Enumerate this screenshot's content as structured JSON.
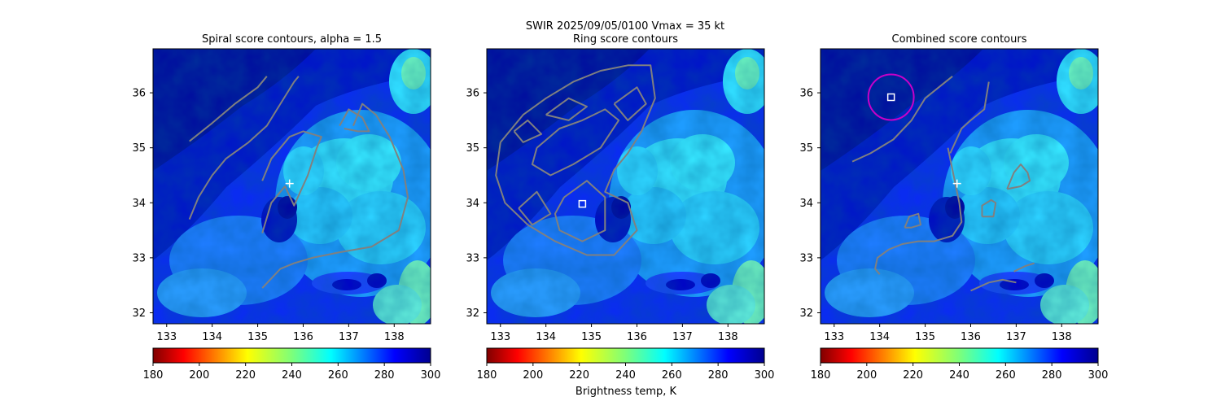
{
  "figure": {
    "suptitle_line1": "SWIR  2025/09/05/0100    Vmax = 35 kt",
    "colorbar_label": "Brightness temp, K"
  },
  "colors": {
    "contour": "#808080",
    "marker": "#ffffff",
    "circle": "#c800c8"
  },
  "chart_data": [
    {
      "type": "heatmap",
      "title": "Spiral score contours, alpha =  1.5",
      "x_ticks": [
        133,
        134,
        135,
        136,
        137,
        138
      ],
      "y_ticks": [
        32,
        33,
        34,
        35,
        36
      ],
      "xlim": [
        132.7,
        138.8
      ],
      "ylim": [
        31.8,
        36.8
      ],
      "colorbar": {
        "ticks": [
          180,
          200,
          220,
          240,
          260,
          280,
          300
        ],
        "colormap": "jet_r",
        "range": [
          180,
          300
        ]
      },
      "markers": [
        {
          "type": "plus",
          "lon": 135.7,
          "lat": 34.35
        }
      ],
      "contours": [
        [
          [
            133.5,
            35.12
          ],
          [
            134.0,
            35.45
          ],
          [
            134.5,
            35.8
          ],
          [
            135.0,
            36.1
          ],
          [
            135.2,
            36.3
          ]
        ],
        [
          [
            133.5,
            33.7
          ],
          [
            133.7,
            34.1
          ],
          [
            134.0,
            34.5
          ],
          [
            134.3,
            34.8
          ],
          [
            134.8,
            35.1
          ],
          [
            135.2,
            35.4
          ],
          [
            135.5,
            35.8
          ],
          [
            135.8,
            36.2
          ],
          [
            135.9,
            36.3
          ]
        ],
        [
          [
            135.1,
            33.45
          ],
          [
            135.3,
            34.0
          ],
          [
            135.6,
            34.3
          ],
          [
            135.8,
            33.95
          ],
          [
            136.1,
            34.5
          ],
          [
            136.3,
            35.0
          ],
          [
            136.4,
            35.2
          ],
          [
            136.0,
            35.3
          ],
          [
            135.7,
            35.2
          ],
          [
            135.3,
            34.8
          ],
          [
            135.1,
            34.4
          ]
        ],
        [
          [
            137.1,
            35.4
          ],
          [
            137.3,
            35.8
          ],
          [
            137.6,
            35.6
          ],
          [
            137.9,
            35.2
          ],
          [
            138.2,
            34.6
          ],
          [
            138.3,
            34.1
          ],
          [
            138.1,
            33.5
          ],
          [
            137.5,
            33.2
          ],
          [
            136.8,
            33.1
          ],
          [
            136.2,
            33.0
          ],
          [
            135.8,
            32.9
          ],
          [
            135.5,
            32.8
          ],
          [
            135.1,
            32.45
          ]
        ],
        [
          [
            136.8,
            35.4
          ],
          [
            137.0,
            35.7
          ],
          [
            137.3,
            35.55
          ],
          [
            137.45,
            35.3
          ],
          [
            137.2,
            35.3
          ],
          [
            136.9,
            35.35
          ]
        ]
      ]
    },
    {
      "type": "heatmap",
      "title": "Ring score contours",
      "x_ticks": [
        133,
        134,
        135,
        136,
        137,
        138
      ],
      "y_ticks": [
        32,
        33,
        34,
        35,
        36
      ],
      "xlim": [
        132.7,
        138.8
      ],
      "ylim": [
        31.8,
        36.8
      ],
      "colorbar": {
        "ticks": [
          180,
          200,
          220,
          240,
          260,
          280,
          300
        ],
        "colormap": "jet_r",
        "range": [
          180,
          300
        ]
      },
      "markers": [
        {
          "type": "square",
          "lon": 134.8,
          "lat": 33.98
        }
      ],
      "contours": [
        [
          [
            133.0,
            35.1
          ],
          [
            133.5,
            35.6
          ],
          [
            134.0,
            35.9
          ],
          [
            134.6,
            36.2
          ],
          [
            135.2,
            36.4
          ],
          [
            135.8,
            36.5
          ],
          [
            136.3,
            36.5
          ],
          [
            136.4,
            35.9
          ],
          [
            136.1,
            35.3
          ],
          [
            135.8,
            34.9
          ],
          [
            135.5,
            34.6
          ],
          [
            135.3,
            34.2
          ],
          [
            135.8,
            34.0
          ],
          [
            136.0,
            33.5
          ],
          [
            135.5,
            33.05
          ],
          [
            134.9,
            33.05
          ],
          [
            134.2,
            33.3
          ],
          [
            133.6,
            33.6
          ],
          [
            133.1,
            34.0
          ],
          [
            132.9,
            34.5
          ],
          [
            133.0,
            35.1
          ]
        ],
        [
          [
            133.8,
            35.0
          ],
          [
            134.3,
            35.35
          ],
          [
            134.8,
            35.5
          ],
          [
            135.3,
            35.7
          ],
          [
            135.6,
            35.5
          ],
          [
            135.2,
            35.0
          ],
          [
            134.6,
            34.7
          ],
          [
            134.1,
            34.5
          ],
          [
            133.7,
            34.7
          ],
          [
            133.8,
            35.0
          ]
        ],
        [
          [
            134.4,
            34.1
          ],
          [
            134.9,
            34.4
          ],
          [
            135.3,
            34.1
          ],
          [
            135.3,
            33.5
          ],
          [
            134.8,
            33.3
          ],
          [
            134.3,
            33.5
          ],
          [
            134.2,
            33.8
          ],
          [
            134.4,
            34.1
          ]
        ],
        [
          [
            133.4,
            33.9
          ],
          [
            133.8,
            34.2
          ],
          [
            134.1,
            33.8
          ],
          [
            133.7,
            33.6
          ],
          [
            133.4,
            33.9
          ]
        ],
        [
          [
            135.5,
            35.8
          ],
          [
            136.0,
            36.1
          ],
          [
            136.2,
            35.8
          ],
          [
            135.8,
            35.5
          ],
          [
            135.5,
            35.8
          ]
        ],
        [
          [
            134.0,
            35.6
          ],
          [
            134.5,
            35.9
          ],
          [
            134.9,
            35.75
          ],
          [
            134.5,
            35.5
          ],
          [
            134.0,
            35.6
          ]
        ],
        [
          [
            133.3,
            35.3
          ],
          [
            133.6,
            35.5
          ],
          [
            133.9,
            35.25
          ],
          [
            133.5,
            35.1
          ],
          [
            133.3,
            35.3
          ]
        ]
      ]
    },
    {
      "type": "heatmap",
      "title": "Combined score contours",
      "x_ticks": [
        133,
        134,
        135,
        136,
        137,
        138
      ],
      "y_ticks": [
        32,
        33,
        34,
        35,
        36
      ],
      "xlim": [
        132.7,
        138.8
      ],
      "ylim": [
        31.8,
        36.8
      ],
      "colorbar": {
        "ticks": [
          180,
          200,
          220,
          240,
          260,
          280,
          300
        ],
        "colormap": "jet_r",
        "range": [
          180,
          300
        ]
      },
      "markers": [
        {
          "type": "plus",
          "lon": 135.7,
          "lat": 34.35
        },
        {
          "type": "square",
          "lon": 134.25,
          "lat": 35.92
        },
        {
          "type": "circle",
          "lon": 134.25,
          "lat": 35.92,
          "radius_deg": 0.5
        }
      ],
      "contours": [
        [
          [
            133.4,
            34.75
          ],
          [
            133.8,
            34.9
          ],
          [
            134.3,
            35.15
          ],
          [
            134.7,
            35.5
          ],
          [
            135.0,
            35.9
          ],
          [
            135.3,
            36.1
          ],
          [
            135.6,
            36.3
          ]
        ],
        [
          [
            135.5,
            35.0
          ],
          [
            135.6,
            34.6
          ],
          [
            135.75,
            34.0
          ],
          [
            135.8,
            33.65
          ],
          [
            135.6,
            33.4
          ],
          [
            135.2,
            33.3
          ],
          [
            134.85,
            33.3
          ],
          [
            134.5,
            33.25
          ],
          [
            134.2,
            33.15
          ],
          [
            133.95,
            33.0
          ],
          [
            133.9,
            32.8
          ],
          [
            134.0,
            32.7
          ]
        ],
        [
          [
            135.55,
            34.9
          ],
          [
            135.8,
            35.35
          ],
          [
            136.0,
            35.5
          ],
          [
            136.3,
            35.7
          ],
          [
            136.4,
            36.2
          ]
        ],
        [
          [
            136.8,
            34.25
          ],
          [
            136.95,
            34.55
          ],
          [
            137.1,
            34.7
          ],
          [
            137.25,
            34.55
          ],
          [
            137.3,
            34.4
          ],
          [
            137.1,
            34.3
          ],
          [
            136.8,
            34.25
          ]
        ],
        [
          [
            136.25,
            33.75
          ],
          [
            136.5,
            33.75
          ],
          [
            136.55,
            34.0
          ],
          [
            136.45,
            34.05
          ],
          [
            136.25,
            33.95
          ],
          [
            136.25,
            33.75
          ]
        ],
        [
          [
            134.55,
            33.55
          ],
          [
            134.65,
            33.75
          ],
          [
            134.85,
            33.8
          ],
          [
            134.9,
            33.6
          ],
          [
            134.7,
            33.55
          ],
          [
            134.55,
            33.55
          ]
        ],
        [
          [
            136.0,
            32.4
          ],
          [
            136.4,
            32.55
          ],
          [
            136.7,
            32.6
          ],
          [
            137.0,
            32.55
          ]
        ],
        [
          [
            136.95,
            32.75
          ],
          [
            137.2,
            32.85
          ],
          [
            137.4,
            32.9
          ]
        ]
      ]
    }
  ]
}
